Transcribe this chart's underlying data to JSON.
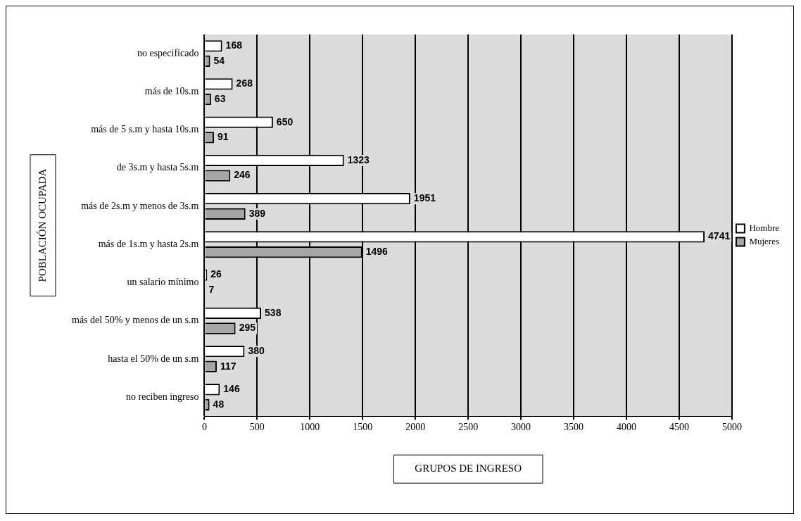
{
  "chart_data": {
    "type": "bar",
    "orientation": "horizontal",
    "xlabel": "GRUPOS DE INGRESO",
    "ylabel": "POBLACIÓN OCUPADA",
    "categories": [
      "no especificado",
      "más de 10s.m",
      "más de 5 s.m y hasta 10s.m",
      "de 3s.m y hasta 5s.m",
      "más de 2s.m y menos de 3s.m",
      "más de 1s.m y hasta 2s.m",
      "un salario mínimo",
      "más del 50% y menos de un s.m",
      "hasta el 50% de un s.m",
      "no reciben ingreso"
    ],
    "series": [
      {
        "name": "Hombre",
        "color": "#ffffff",
        "values": [
          168,
          268,
          650,
          1323,
          1951,
          4741,
          26,
          538,
          380,
          146
        ]
      },
      {
        "name": "Mujeres",
        "color": "#a6a6a6",
        "values": [
          54,
          63,
          91,
          246,
          389,
          1496,
          7,
          295,
          117,
          48
        ]
      }
    ],
    "xlim": [
      0,
      5000
    ],
    "xticks": [
      0,
      500,
      1000,
      1500,
      2000,
      2500,
      3000,
      3500,
      4000,
      4500,
      5000
    ],
    "grid": "x",
    "legend": "right",
    "data_labels": true
  }
}
